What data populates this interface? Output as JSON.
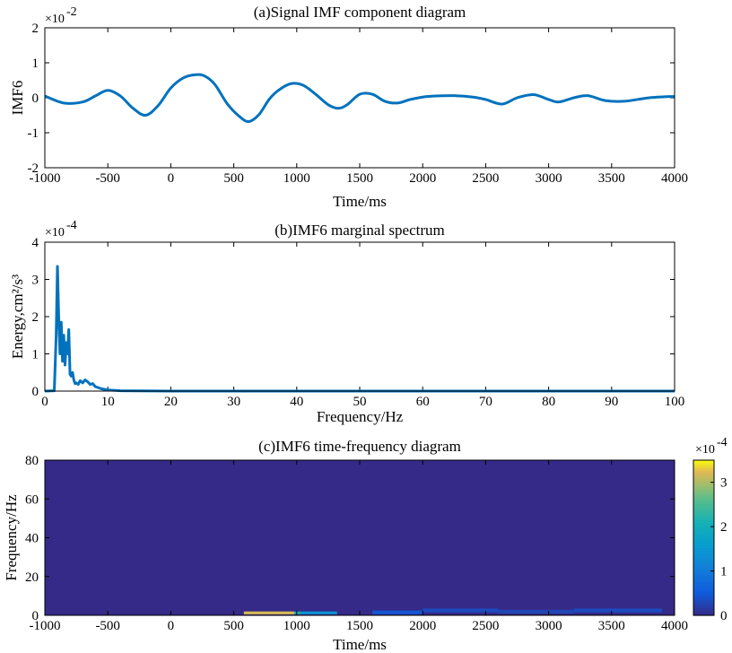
{
  "chart_data": [
    {
      "type": "line",
      "title": "(a)Signal IMF component diagram",
      "xlabel": "Time/ms",
      "ylabel": "IMF6",
      "xlim": [
        -1000,
        4000
      ],
      "ylim": [
        -2,
        2
      ],
      "xticks": [
        -1000,
        -500,
        0,
        500,
        1000,
        1500,
        2000,
        2500,
        3000,
        3500,
        4000
      ],
      "yticks": [
        -2,
        -1,
        0,
        1,
        2
      ],
      "y_multiplier": "×10^-2",
      "y_multiplier_base": "×10",
      "y_multiplier_exp": "-2",
      "series_color": "#0072BD",
      "series": [
        {
          "x": [
            -1000,
            -850,
            -700,
            -600,
            -500,
            -400,
            -300,
            -200,
            -100,
            0,
            100,
            200,
            270,
            350,
            450,
            550,
            620,
            700,
            780,
            850,
            950,
            1050,
            1150,
            1250,
            1330,
            1400,
            1500,
            1600,
            1700,
            1800,
            1900,
            2000,
            2100,
            2250,
            2400,
            2500,
            2630,
            2750,
            2880,
            3000,
            3080,
            3200,
            3310,
            3450,
            3600,
            3800,
            4000
          ],
          "y": [
            0.05,
            -0.15,
            -0.12,
            0.05,
            0.21,
            0.05,
            -0.3,
            -0.5,
            -0.22,
            0.28,
            0.57,
            0.66,
            0.62,
            0.38,
            -0.18,
            -0.55,
            -0.68,
            -0.48,
            -0.05,
            0.2,
            0.4,
            0.36,
            0.1,
            -0.2,
            -0.3,
            -0.2,
            0.1,
            0.1,
            -0.1,
            -0.15,
            -0.05,
            0.02,
            0.05,
            0.06,
            0.02,
            -0.05,
            -0.18,
            0.0,
            0.09,
            -0.05,
            -0.12,
            0.0,
            0.06,
            -0.08,
            -0.1,
            0.0,
            0.04
          ]
        }
      ]
    },
    {
      "type": "line",
      "title": "(b)IMF6 marginal spectrum",
      "xlabel": "Frequency/Hz",
      "ylabel": "Energy,cm²/s³",
      "xlim": [
        0,
        100
      ],
      "ylim": [
        0,
        4
      ],
      "xticks": [
        0,
        10,
        20,
        30,
        40,
        50,
        60,
        70,
        80,
        90,
        100
      ],
      "yticks": [
        0,
        1,
        2,
        3,
        4
      ],
      "y_multiplier": "×10^-4",
      "y_multiplier_base": "×10",
      "y_multiplier_exp": "-4",
      "series_color": "#0072BD",
      "series": [
        {
          "x": [
            0,
            1.5,
            1.8,
            2.0,
            2.2,
            2.4,
            2.6,
            2.8,
            3.0,
            3.2,
            3.4,
            3.6,
            3.8,
            4.0,
            4.2,
            4.4,
            4.6,
            4.8,
            5.0,
            5.3,
            5.6,
            6.0,
            6.4,
            6.8,
            7.2,
            7.6,
            8.0,
            9.0,
            10.0,
            12.0,
            20.0,
            100.0
          ],
          "y": [
            0,
            0.01,
            1.5,
            3.35,
            2.0,
            1.0,
            1.85,
            0.8,
            1.5,
            0.7,
            1.3,
            1.0,
            1.65,
            0.45,
            0.4,
            0.5,
            0.3,
            0.2,
            0.22,
            0.18,
            0.28,
            0.22,
            0.3,
            0.25,
            0.18,
            0.2,
            0.12,
            0.06,
            0.03,
            0.01,
            0.0,
            0.0
          ]
        }
      ]
    },
    {
      "type": "heatmap",
      "title": "(c)IMF6 time-frequency diagram",
      "xlabel": "Time/ms",
      "ylabel": "Frequency/Hz",
      "xlim": [
        -1000,
        4000
      ],
      "ylim": [
        0,
        80
      ],
      "xticks": [
        -1000,
        -500,
        0,
        500,
        1000,
        1500,
        2000,
        2500,
        3000,
        3500,
        4000
      ],
      "yticks": [
        0,
        20,
        40,
        60,
        80
      ],
      "colorbar_ticks": [
        0,
        1,
        2,
        3
      ],
      "colorbar_range": [
        0,
        3.5
      ],
      "colorbar_multiplier": "×10^-4",
      "colorbar_multiplier_base": "×10",
      "colorbar_multiplier_exp": "-4",
      "background_value": 0,
      "cells": [
        {
          "t0": 580,
          "t1": 980,
          "f0": 0.5,
          "f1": 2.0,
          "value": 3.2
        },
        {
          "t0": 980,
          "t1": 1030,
          "f0": 0.5,
          "f1": 2.0,
          "value": 2.0
        },
        {
          "t0": 1030,
          "t1": 1320,
          "f0": 0.5,
          "f1": 2.0,
          "value": 1.4
        },
        {
          "t0": 1600,
          "t1": 2000,
          "f0": 0.5,
          "f1": 2.5,
          "value": 0.45
        },
        {
          "t0": 2000,
          "t1": 2600,
          "f0": 1.5,
          "f1": 3.5,
          "value": 0.35
        },
        {
          "t0": 2600,
          "t1": 3200,
          "f0": 1.0,
          "f1": 2.8,
          "value": 0.3
        },
        {
          "t0": 3200,
          "t1": 3900,
          "f0": 1.5,
          "f1": 3.5,
          "value": 0.35
        }
      ]
    }
  ]
}
